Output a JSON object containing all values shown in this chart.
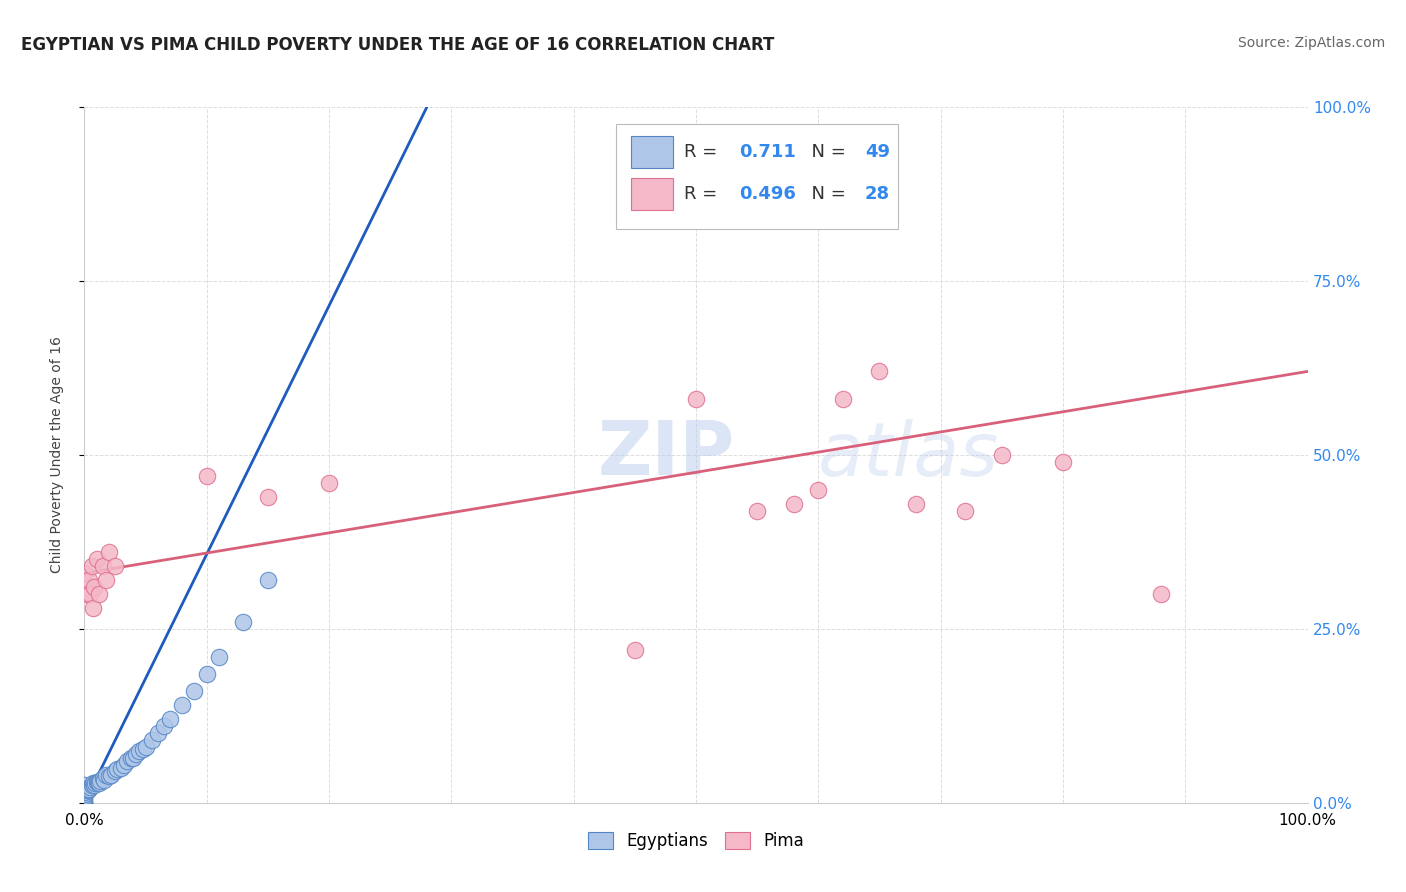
{
  "title": "EGYPTIAN VS PIMA CHILD POVERTY UNDER THE AGE OF 16 CORRELATION CHART",
  "source_text": "Source: ZipAtlas.com",
  "ylabel": "Child Poverty Under the Age of 16",
  "xlim": [
    0.0,
    1.0
  ],
  "ylim": [
    0.0,
    1.0
  ],
  "x_tick_vals": [
    0.0,
    0.1,
    0.2,
    0.3,
    0.4,
    0.5,
    0.6,
    0.7,
    0.8,
    0.9,
    1.0
  ],
  "x_tick_labels_show": {
    "0.0": "0.0%",
    "1.0": "100.0%"
  },
  "y_tick_vals": [
    0.0,
    0.25,
    0.5,
    0.75,
    1.0
  ],
  "y_tick_labels": [
    "0.0%",
    "25.0%",
    "50.0%",
    "75.0%",
    "100.0%"
  ],
  "egyptian_fill_color": "#aec6e8",
  "egyptian_edge_color": "#5585c5",
  "pima_fill_color": "#f4b8c8",
  "pima_edge_color": "#e07090",
  "egyptian_line_color": "#1f5bbf",
  "pima_line_color": "#d9607a",
  "R_egyptian": 0.711,
  "N_egyptian": 49,
  "R_pima": 0.496,
  "N_pima": 28,
  "watermark_color": "#ccdcf0",
  "grid_color": "#dddddd",
  "background_color": "#ffffff",
  "egyptian_points_x": [
    0.0,
    0.0,
    0.0,
    0.0,
    0.0,
    0.0,
    0.0,
    0.0,
    0.0,
    0.0,
    0.0,
    0.0,
    0.003,
    0.004,
    0.005,
    0.006,
    0.007,
    0.008,
    0.009,
    0.01,
    0.011,
    0.012,
    0.013,
    0.015,
    0.016,
    0.018,
    0.02,
    0.022,
    0.025,
    0.027,
    0.03,
    0.032,
    0.035,
    0.038,
    0.04,
    0.042,
    0.045,
    0.048,
    0.05,
    0.055,
    0.06,
    0.065,
    0.07,
    0.08,
    0.09,
    0.1,
    0.11,
    0.13,
    0.15
  ],
  "egyptian_points_y": [
    0.0,
    0.0,
    0.0,
    0.0,
    0.005,
    0.007,
    0.01,
    0.012,
    0.015,
    0.018,
    0.02,
    0.025,
    0.018,
    0.02,
    0.022,
    0.025,
    0.028,
    0.025,
    0.028,
    0.03,
    0.03,
    0.028,
    0.032,
    0.035,
    0.033,
    0.04,
    0.038,
    0.04,
    0.045,
    0.048,
    0.05,
    0.055,
    0.06,
    0.065,
    0.065,
    0.07,
    0.075,
    0.078,
    0.08,
    0.09,
    0.1,
    0.11,
    0.12,
    0.14,
    0.16,
    0.185,
    0.21,
    0.26,
    0.32
  ],
  "pima_points_x": [
    0.0,
    0.002,
    0.004,
    0.005,
    0.006,
    0.007,
    0.008,
    0.01,
    0.012,
    0.015,
    0.018,
    0.02,
    0.025,
    0.1,
    0.15,
    0.2,
    0.45,
    0.5,
    0.55,
    0.58,
    0.6,
    0.62,
    0.65,
    0.68,
    0.72,
    0.75,
    0.8,
    0.88
  ],
  "pima_points_y": [
    0.33,
    0.3,
    0.32,
    0.3,
    0.34,
    0.28,
    0.31,
    0.35,
    0.3,
    0.34,
    0.32,
    0.36,
    0.34,
    0.47,
    0.44,
    0.46,
    0.22,
    0.58,
    0.42,
    0.43,
    0.45,
    0.58,
    0.62,
    0.43,
    0.42,
    0.5,
    0.49,
    0.3
  ],
  "title_fontsize": 12,
  "label_fontsize": 10,
  "tick_fontsize": 11,
  "legend_fontsize": 13,
  "source_fontsize": 10,
  "egyptian_line_x0": 0.0,
  "egyptian_line_y0": 0.0,
  "egyptian_line_x1": 0.28,
  "egyptian_line_y1": 1.0,
  "pima_line_x0": 0.0,
  "pima_line_y0": 0.33,
  "pima_line_x1": 1.0,
  "pima_line_y1": 0.62
}
